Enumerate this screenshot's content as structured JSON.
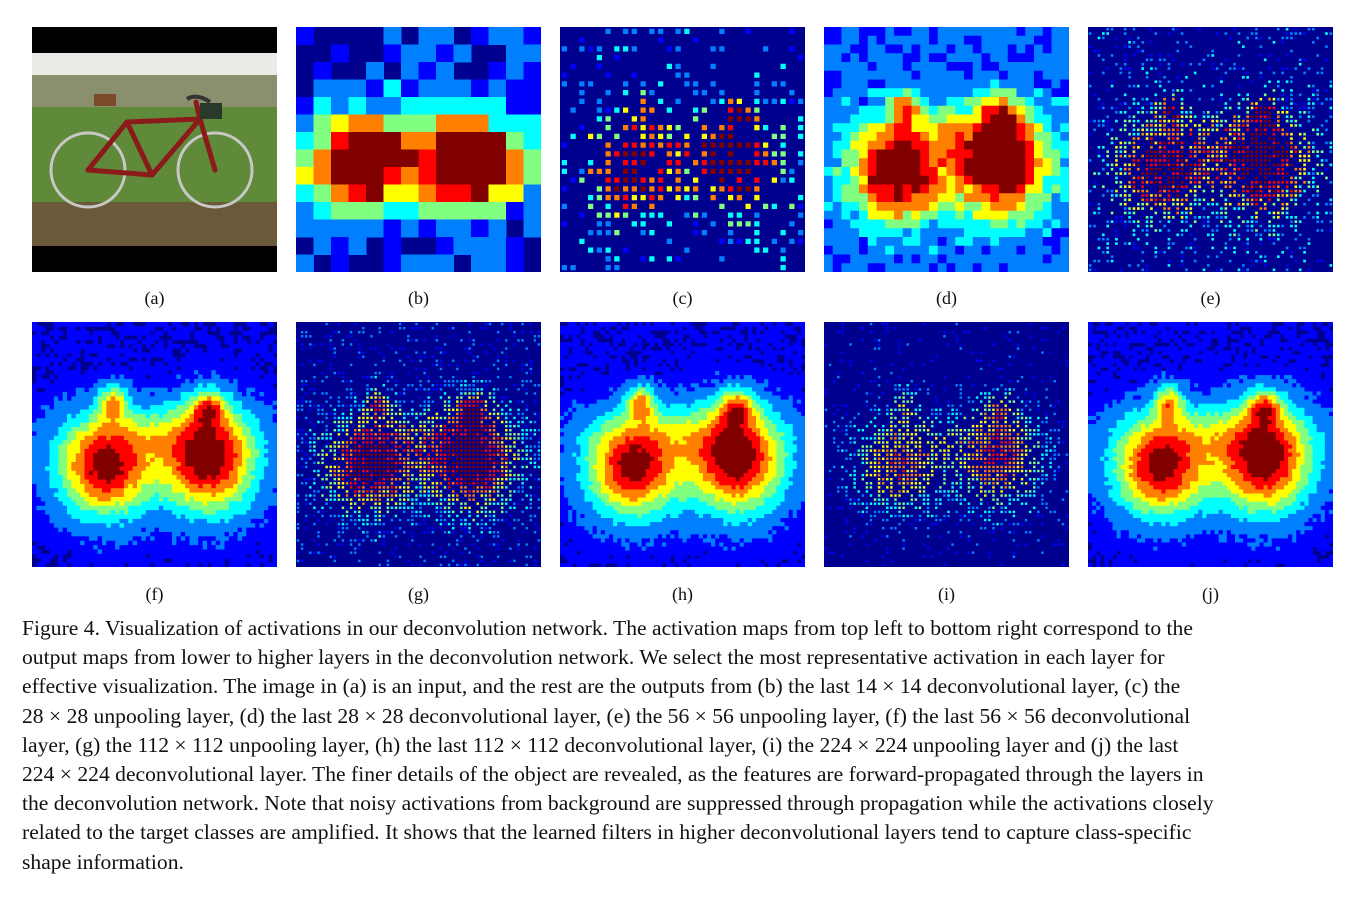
{
  "figure": {
    "panels": [
      {
        "id": "a",
        "label": "(a)",
        "kind": "input-image",
        "depicts": "red bicycle on grass field"
      },
      {
        "id": "b",
        "label": "(b)",
        "kind": "heatmap",
        "style": "coarse-blocks",
        "grid": 14
      },
      {
        "id": "c",
        "label": "(c)",
        "kind": "heatmap",
        "style": "sparse-dots",
        "grid": 28
      },
      {
        "id": "d",
        "label": "(d)",
        "kind": "heatmap",
        "style": "blocky-blobs",
        "grid": 28
      },
      {
        "id": "e",
        "label": "(e)",
        "kind": "heatmap",
        "style": "sparse-dots",
        "grid": 56
      },
      {
        "id": "f",
        "label": "(f)",
        "kind": "heatmap",
        "style": "smooth-blobs",
        "grid": 56
      },
      {
        "id": "g",
        "label": "(g)",
        "kind": "heatmap",
        "style": "dotted-blobs",
        "grid": 112
      },
      {
        "id": "h",
        "label": "(h)",
        "kind": "heatmap",
        "style": "smooth-blobs",
        "grid": 112
      },
      {
        "id": "i",
        "label": "(i)",
        "kind": "heatmap",
        "style": "faint-dotted",
        "grid": 224
      },
      {
        "id": "j",
        "label": "(j)",
        "kind": "heatmap",
        "style": "smooth-blobs",
        "grid": 224
      }
    ],
    "colormap": [
      "#00008f",
      "#0000ff",
      "#0080ff",
      "#00ffff",
      "#80ff80",
      "#ffff00",
      "#ff8000",
      "#ff0000",
      "#800000"
    ],
    "caption_lines": [
      "Figure 4. Visualization of activations in our deconvolution network. The activation maps from top left to bottom right correspond to the",
      "output maps from lower to higher layers in the deconvolution network. We select the most representative activation in each layer for",
      "effective visualization. The image in (a) is an input, and the rest are the outputs from (b) the last 14 × 14 deconvolutional layer, (c) the",
      "28 × 28 unpooling layer, (d) the last 28 × 28 deconvolutional layer, (e) the 56 × 56 unpooling layer, (f) the last 56 × 56 deconvolutional",
      "layer, (g) the 112 × 112 unpooling layer, (h) the last 112 × 112 deconvolutional layer, (i) the 224 × 224 unpooling layer and (j) the last",
      "224 × 224 deconvolutional layer. The finer details of the object are revealed, as the features are forward-propagated through the layers in",
      "the deconvolution network. Note that noisy activations from background are suppressed through propagation while the activations closely",
      "related to the target classes are amplified. It shows that the learned filters in higher deconvolutional layers tend to capture class-specific",
      "shape information."
    ]
  }
}
